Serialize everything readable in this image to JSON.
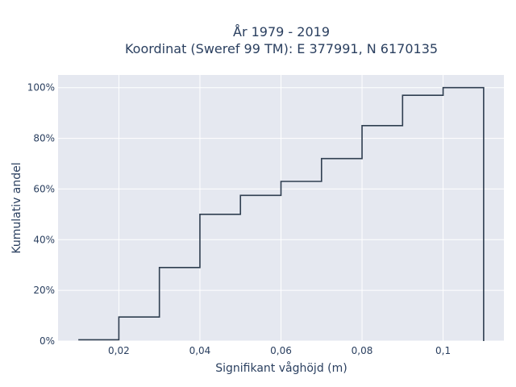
{
  "chart_data": {
    "type": "line",
    "title_line1": "År 1979 - 2019",
    "title_line2": "Koordinat (Sweref 99 TM): E 377991, N 6170135",
    "xlabel": "Signifikant våghöjd (m)",
    "ylabel": "Kumulativ andel",
    "xlim": [
      0.005,
      0.115
    ],
    "ylim": [
      0,
      1.05
    ],
    "grid": true,
    "line_color": "#2f3e50",
    "plot_bg": "#e5e8f0",
    "x_ticks": [
      {
        "value": 0.02,
        "label": "0,02"
      },
      {
        "value": 0.04,
        "label": "0,04"
      },
      {
        "value": 0.06,
        "label": "0,06"
      },
      {
        "value": 0.08,
        "label": "0,08"
      },
      {
        "value": 0.1,
        "label": "0,1"
      }
    ],
    "y_ticks": [
      {
        "value": 0,
        "label": "0%"
      },
      {
        "value": 0.2,
        "label": "20%"
      },
      {
        "value": 0.4,
        "label": "40%"
      },
      {
        "value": 0.6,
        "label": "60%"
      },
      {
        "value": 0.8,
        "label": "80%"
      },
      {
        "value": 1.0,
        "label": "100%"
      }
    ],
    "bin_edges": [
      0.01,
      0.02,
      0.03,
      0.04,
      0.05,
      0.06,
      0.07,
      0.08,
      0.09,
      0.1,
      0.11
    ],
    "cumulative": [
      0.005,
      0.095,
      0.29,
      0.5,
      0.575,
      0.63,
      0.72,
      0.85,
      0.97,
      1.0
    ]
  }
}
